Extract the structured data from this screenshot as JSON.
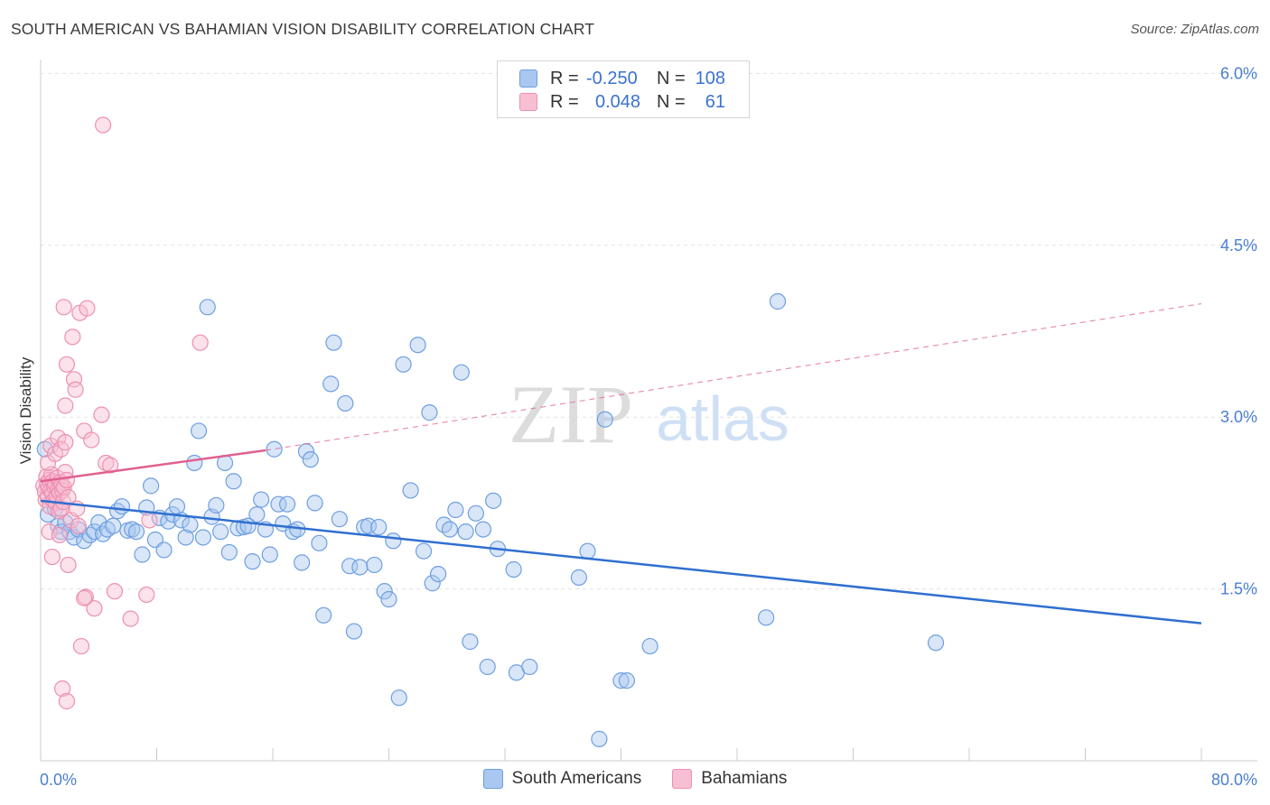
{
  "title": "SOUTH AMERICAN VS BAHAMIAN VISION DISABILITY CORRELATION CHART",
  "source": "Source: ZipAtlas.com",
  "watermark": {
    "bold": "ZIP",
    "light": "atlas"
  },
  "legend": {
    "rows": [
      {
        "r_label": "R =",
        "r_value": "-0.250",
        "n_label": "N =",
        "n_value": "108"
      },
      {
        "r_label": "R =",
        "r_value": "0.048",
        "n_label": "N =",
        "n_value": "61"
      }
    ]
  },
  "bottom_legend": [
    "South Americans",
    "Bahamians"
  ],
  "chart_data": {
    "type": "scatter",
    "title": "SOUTH AMERICAN VS BAHAMIAN VISION DISABILITY CORRELATION CHART",
    "xlabel": "",
    "ylabel": "Vision Disability",
    "xlim": [
      0,
      80
    ],
    "ylim": [
      0,
      6.2
    ],
    "x_tick_labels": [
      "0.0%",
      "80.0%"
    ],
    "y_ticks": [
      1.5,
      3.0,
      4.5,
      6.0
    ],
    "y_tick_labels": [
      "1.5%",
      "3.0%",
      "4.5%",
      "6.0%"
    ],
    "series": [
      {
        "name": "South Americans",
        "color": "#6e9fe0",
        "fill": "#a9c7f0",
        "line_color": "#2f6fd0",
        "R": -0.25,
        "N": 108,
        "trend": {
          "x": [
            0,
            80
          ],
          "y": [
            2.27,
            1.2
          ]
        },
        "points": [
          [
            0.3,
            2.72
          ],
          [
            0.5,
            2.15
          ],
          [
            0.8,
            2.28
          ],
          [
            1.0,
            2.2
          ],
          [
            1.2,
            2.05
          ],
          [
            1.4,
            2.0
          ],
          [
            1.7,
            2.08
          ],
          [
            2.0,
            2.0
          ],
          [
            2.3,
            1.95
          ],
          [
            2.6,
            2.02
          ],
          [
            3.0,
            1.92
          ],
          [
            3.4,
            1.97
          ],
          [
            3.7,
            2.0
          ],
          [
            4.0,
            2.08
          ],
          [
            4.3,
            1.98
          ],
          [
            4.6,
            2.02
          ],
          [
            5.0,
            2.05
          ],
          [
            5.3,
            2.18
          ],
          [
            5.6,
            2.22
          ],
          [
            6.0,
            2.01
          ],
          [
            6.3,
            2.02
          ],
          [
            6.6,
            2.0
          ],
          [
            7.0,
            1.8
          ],
          [
            7.3,
            2.21
          ],
          [
            7.6,
            2.4
          ],
          [
            7.9,
            1.93
          ],
          [
            8.2,
            2.12
          ],
          [
            8.5,
            1.84
          ],
          [
            8.8,
            2.09
          ],
          [
            9.1,
            2.15
          ],
          [
            9.4,
            2.22
          ],
          [
            9.7,
            2.1
          ],
          [
            10.0,
            1.95
          ],
          [
            10.3,
            2.06
          ],
          [
            10.6,
            2.6
          ],
          [
            10.9,
            2.88
          ],
          [
            11.2,
            1.95
          ],
          [
            11.5,
            3.96
          ],
          [
            11.8,
            2.13
          ],
          [
            12.1,
            2.23
          ],
          [
            12.4,
            2.0
          ],
          [
            12.7,
            2.6
          ],
          [
            13.0,
            1.82
          ],
          [
            13.3,
            2.44
          ],
          [
            13.6,
            2.03
          ],
          [
            14.0,
            2.04
          ],
          [
            14.3,
            2.05
          ],
          [
            14.6,
            1.74
          ],
          [
            14.9,
            2.15
          ],
          [
            15.2,
            2.28
          ],
          [
            15.5,
            2.02
          ],
          [
            15.8,
            1.8
          ],
          [
            16.1,
            2.72
          ],
          [
            16.4,
            2.24
          ],
          [
            16.7,
            2.07
          ],
          [
            17.0,
            2.24
          ],
          [
            17.4,
            2.0
          ],
          [
            17.7,
            2.02
          ],
          [
            18.0,
            1.73
          ],
          [
            18.3,
            2.7
          ],
          [
            18.6,
            2.63
          ],
          [
            18.9,
            2.25
          ],
          [
            19.2,
            1.9
          ],
          [
            19.5,
            1.27
          ],
          [
            20.0,
            3.29
          ],
          [
            20.2,
            3.65
          ],
          [
            20.6,
            2.11
          ],
          [
            21.0,
            3.12
          ],
          [
            21.3,
            1.7
          ],
          [
            21.6,
            1.13
          ],
          [
            22.0,
            1.69
          ],
          [
            22.3,
            2.04
          ],
          [
            22.6,
            2.05
          ],
          [
            23.0,
            1.71
          ],
          [
            23.3,
            2.04
          ],
          [
            23.7,
            1.48
          ],
          [
            24.0,
            1.41
          ],
          [
            24.3,
            1.92
          ],
          [
            24.7,
            0.55
          ],
          [
            25.0,
            3.46
          ],
          [
            25.5,
            2.36
          ],
          [
            26.0,
            3.63
          ],
          [
            26.4,
            1.83
          ],
          [
            26.8,
            3.04
          ],
          [
            27.0,
            1.55
          ],
          [
            27.4,
            1.63
          ],
          [
            27.8,
            2.06
          ],
          [
            28.2,
            2.02
          ],
          [
            28.6,
            2.19
          ],
          [
            29.0,
            3.39
          ],
          [
            29.3,
            2.0
          ],
          [
            29.6,
            1.04
          ],
          [
            30.0,
            2.16
          ],
          [
            30.5,
            2.02
          ],
          [
            30.8,
            0.82
          ],
          [
            31.2,
            2.27
          ],
          [
            31.5,
            1.85
          ],
          [
            32.6,
            1.67
          ],
          [
            32.8,
            0.77
          ],
          [
            33.7,
            0.82
          ],
          [
            37.1,
            1.6
          ],
          [
            37.7,
            1.83
          ],
          [
            38.5,
            0.19
          ],
          [
            38.9,
            2.98
          ],
          [
            40.0,
            0.7
          ],
          [
            40.4,
            0.7
          ],
          [
            42.0,
            1.0
          ],
          [
            50.0,
            1.25
          ],
          [
            50.8,
            4.01
          ],
          [
            61.7,
            1.03
          ]
        ]
      },
      {
        "name": "Bahamians",
        "color": "#ee8fb0",
        "fill": "#f7bfd3",
        "line_color": "#e0608f",
        "R": 0.048,
        "N": 61,
        "trend": {
          "x": [
            0,
            15.5
          ],
          "y": [
            2.44,
            2.71
          ]
        },
        "trend_dashed": {
          "x": [
            15.5,
            80
          ],
          "y": [
            2.71,
            3.99
          ]
        },
        "points": [
          [
            0.2,
            2.4
          ],
          [
            0.3,
            2.35
          ],
          [
            0.35,
            2.28
          ],
          [
            0.4,
            2.48
          ],
          [
            0.45,
            2.42
          ],
          [
            0.5,
            2.3
          ],
          [
            0.55,
            2.38
          ],
          [
            0.6,
            2.45
          ],
          [
            0.65,
            2.22
          ],
          [
            0.7,
            2.36
          ],
          [
            0.75,
            2.5
          ],
          [
            0.8,
            2.33
          ],
          [
            0.85,
            2.44
          ],
          [
            0.9,
            2.27
          ],
          [
            0.95,
            2.39
          ],
          [
            1.0,
            2.42
          ],
          [
            1.05,
            2.25
          ],
          [
            1.1,
            2.31
          ],
          [
            1.15,
            2.47
          ],
          [
            1.2,
            2.37
          ],
          [
            1.25,
            2.18
          ],
          [
            1.3,
            2.34
          ],
          [
            1.35,
            2.43
          ],
          [
            1.4,
            2.2
          ],
          [
            1.45,
            2.4
          ],
          [
            1.5,
            2.36
          ],
          [
            1.55,
            2.26
          ],
          [
            1.6,
            2.39
          ],
          [
            1.7,
            2.52
          ],
          [
            1.8,
            2.45
          ],
          [
            1.9,
            2.3
          ],
          [
            0.5,
            2.6
          ],
          [
            0.7,
            2.75
          ],
          [
            1.0,
            2.68
          ],
          [
            1.2,
            2.82
          ],
          [
            1.4,
            2.72
          ],
          [
            1.7,
            2.78
          ],
          [
            0.6,
            2.0
          ],
          [
            0.8,
            1.78
          ],
          [
            1.3,
            1.97
          ],
          [
            1.6,
            3.96
          ],
          [
            1.7,
            3.1
          ],
          [
            1.8,
            3.46
          ],
          [
            1.9,
            1.71
          ],
          [
            2.1,
            2.1
          ],
          [
            2.2,
            3.7
          ],
          [
            2.3,
            3.33
          ],
          [
            2.4,
            3.24
          ],
          [
            2.5,
            2.2
          ],
          [
            2.6,
            2.05
          ],
          [
            2.7,
            3.91
          ],
          [
            3.0,
            2.88
          ],
          [
            3.1,
            1.43
          ],
          [
            3.2,
            3.95
          ],
          [
            3.5,
            2.8
          ],
          [
            3.7,
            1.33
          ],
          [
            4.2,
            3.02
          ],
          [
            4.5,
            2.6
          ],
          [
            5.1,
            1.48
          ],
          [
            7.3,
            1.45
          ],
          [
            11.0,
            3.65
          ]
        ],
        "extra_points": [
          [
            1.5,
            0.63
          ],
          [
            1.8,
            0.52
          ],
          [
            2.8,
            1.0
          ],
          [
            4.3,
            5.55
          ],
          [
            6.2,
            1.24
          ],
          [
            7.5,
            2.1
          ],
          [
            4.8,
            2.58
          ],
          [
            3.0,
            1.42
          ]
        ]
      }
    ]
  }
}
